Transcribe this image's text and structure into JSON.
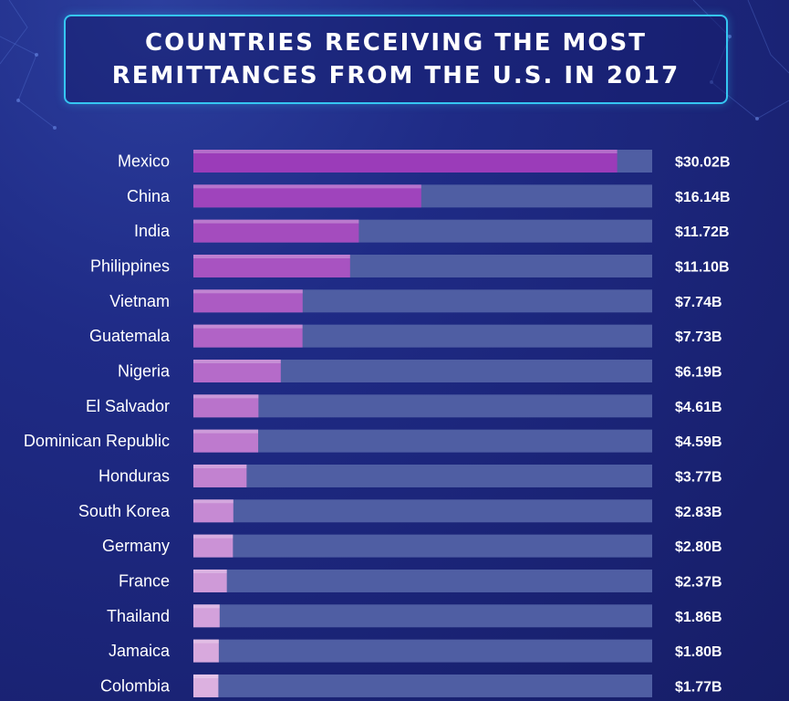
{
  "title": "COUNTRIES RECEIVING THE MOST REMITTANCES FROM THE U.S. IN 2017",
  "colors": {
    "track": "#4f5ea3",
    "bar_strong": "#9b3cb9",
    "bar_light": "#dcb1e0",
    "title_border": "#35c6f2",
    "text": "#ffffff"
  },
  "chart_data": {
    "type": "bar",
    "orientation": "horizontal",
    "title": "COUNTRIES RECEIVING THE MOST REMITTANCES FROM THE U.S. IN 2017",
    "xlabel": "",
    "ylabel": "",
    "xlim": [
      0,
      32.5
    ],
    "grid": false,
    "categories": [
      "Mexico",
      "China",
      "India",
      "Philippines",
      "Vietnam",
      "Guatemala",
      "Nigeria",
      "El Salvador",
      "Dominican Republic",
      "Honduras",
      "South Korea",
      "Germany",
      "France",
      "Thailand",
      "Jamaica",
      "Colombia"
    ],
    "values": [
      30.02,
      16.14,
      11.72,
      11.1,
      7.74,
      7.73,
      6.19,
      4.61,
      4.59,
      3.77,
      2.83,
      2.8,
      2.37,
      1.86,
      1.8,
      1.77
    ],
    "value_labels": [
      "$30.02B",
      "$16.14B",
      "$11.72B",
      "$11.10B",
      "$7.74B",
      "$7.73B",
      "$6.19B",
      "$4.61B",
      "$4.59B",
      "$3.77B",
      "$2.83B",
      "$2.80B",
      "$2.37B",
      "$1.86B",
      "$1.80B",
      "$1.77B"
    ]
  }
}
